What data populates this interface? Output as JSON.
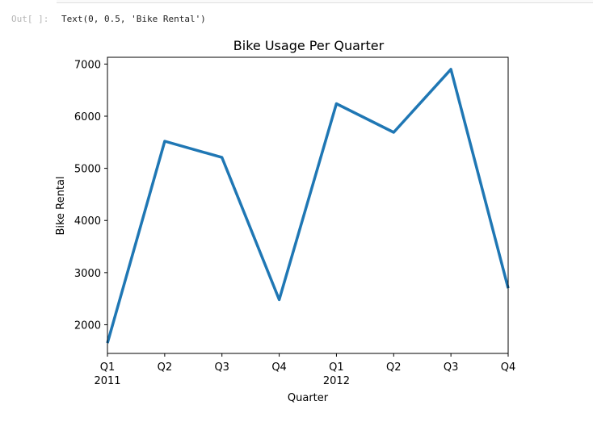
{
  "cell_output": {
    "prompt": "Out[ ]:",
    "text": "Text(0, 0.5, 'Bike Rental')"
  },
  "chart_data": {
    "type": "line",
    "title": "Bike Usage Per Quarter",
    "xlabel": "Quarter",
    "ylabel": "Bike Rental",
    "categories": [
      "Q1 2011",
      "Q2 2011",
      "Q3 2011",
      "Q4 2011",
      "Q1 2012",
      "Q2 2012",
      "Q3 2012",
      "Q4 2012"
    ],
    "tick_labels": [
      "Q1",
      "Q2",
      "Q3",
      "Q4",
      "Q1",
      "Q2",
      "Q3",
      "Q4"
    ],
    "year_labels": [
      {
        "index": 0,
        "label": "2011"
      },
      {
        "index": 4,
        "label": "2012"
      }
    ],
    "values": [
      1650,
      5520,
      5210,
      2480,
      6240,
      5690,
      6900,
      2700
    ],
    "ylim": [
      1450,
      7130
    ],
    "yticks": [
      2000,
      3000,
      4000,
      5000,
      6000,
      7000
    ],
    "grid": false,
    "line_color": "#1f77b4"
  }
}
